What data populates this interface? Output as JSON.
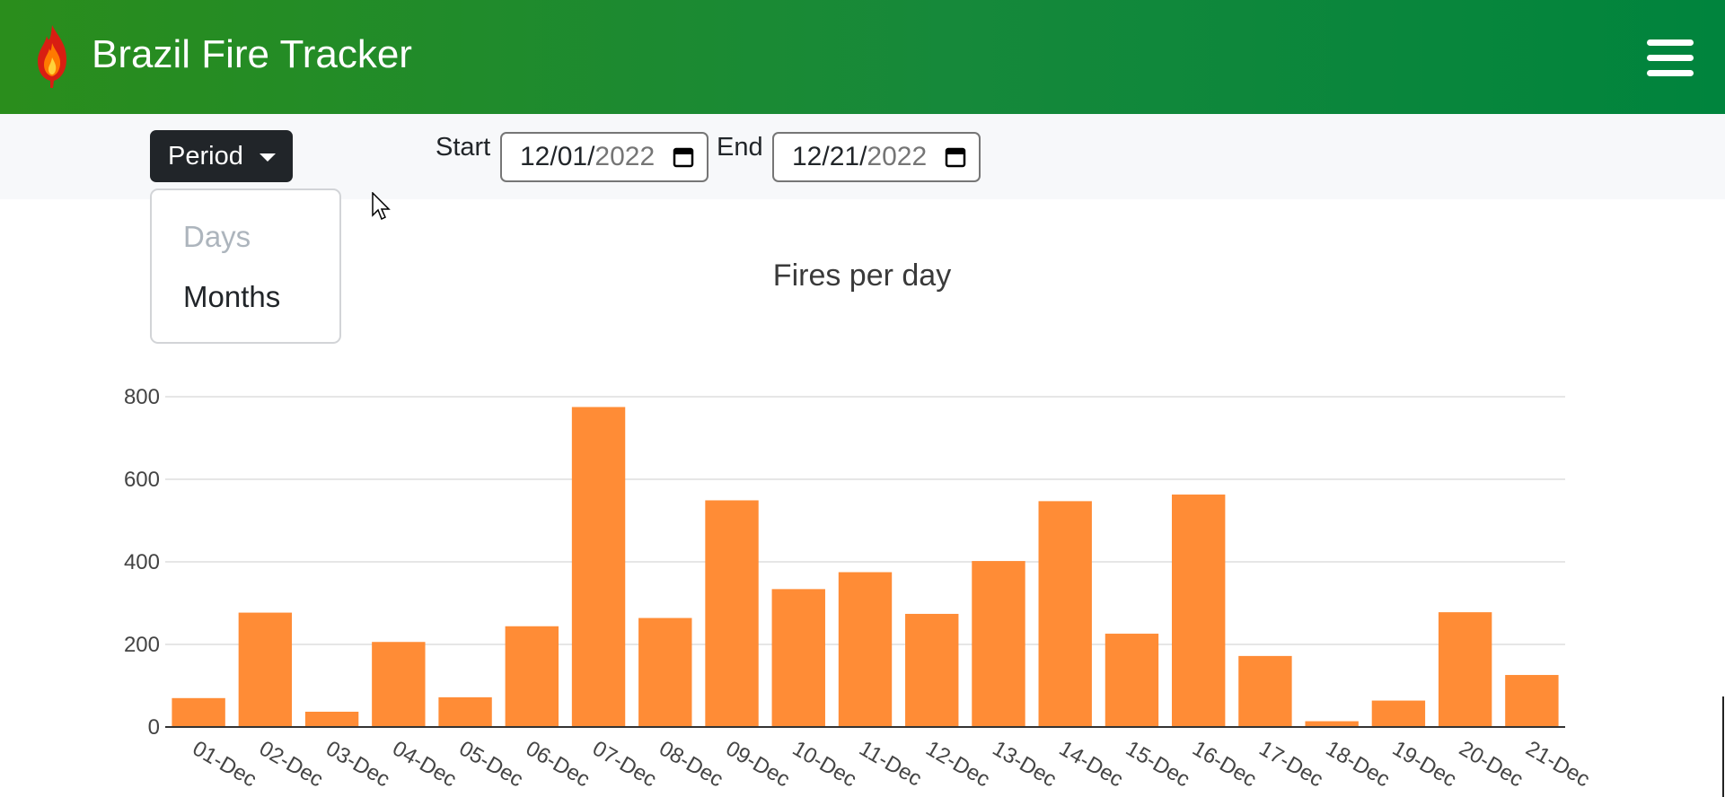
{
  "app": {
    "title": "Brazil Fire Tracker"
  },
  "icons": {
    "logo": "flame-icon",
    "menu": "hamburger-menu-icon",
    "calendar": "calendar-icon",
    "caret": "caret-down-icon"
  },
  "colors": {
    "header_start": "#2a8d1c",
    "header_end": "#00843d",
    "bar": "#ff8c36",
    "button_dark": "#212529"
  },
  "toolbar": {
    "period_label": "Period",
    "start_label": "Start",
    "start_date_prefix": "12/01/",
    "start_date_year": "2022",
    "end_label": "End",
    "end_date_prefix": "12/21/",
    "end_date_year": "2022"
  },
  "period_menu": {
    "open": true,
    "items": [
      {
        "label": "Days",
        "disabled": true
      },
      {
        "label": "Months",
        "disabled": false
      }
    ]
  },
  "chart_data": {
    "type": "bar",
    "title": "Fires per day",
    "xlabel": "",
    "ylabel": "",
    "ylim": [
      0,
      800
    ],
    "yticks": [
      0,
      200,
      400,
      600,
      800
    ],
    "grid": true,
    "categories": [
      "01-Dec",
      "02-Dec",
      "03-Dec",
      "04-Dec",
      "05-Dec",
      "06-Dec",
      "07-Dec",
      "08-Dec",
      "09-Dec",
      "10-Dec",
      "11-Dec",
      "12-Dec",
      "13-Dec",
      "14-Dec",
      "15-Dec",
      "16-Dec",
      "17-Dec",
      "18-Dec",
      "19-Dec",
      "20-Dec",
      "21-Dec"
    ],
    "values": [
      70,
      277,
      37,
      206,
      72,
      244,
      775,
      264,
      549,
      334,
      375,
      274,
      402,
      547,
      226,
      563,
      172,
      14,
      64,
      278,
      126
    ]
  }
}
